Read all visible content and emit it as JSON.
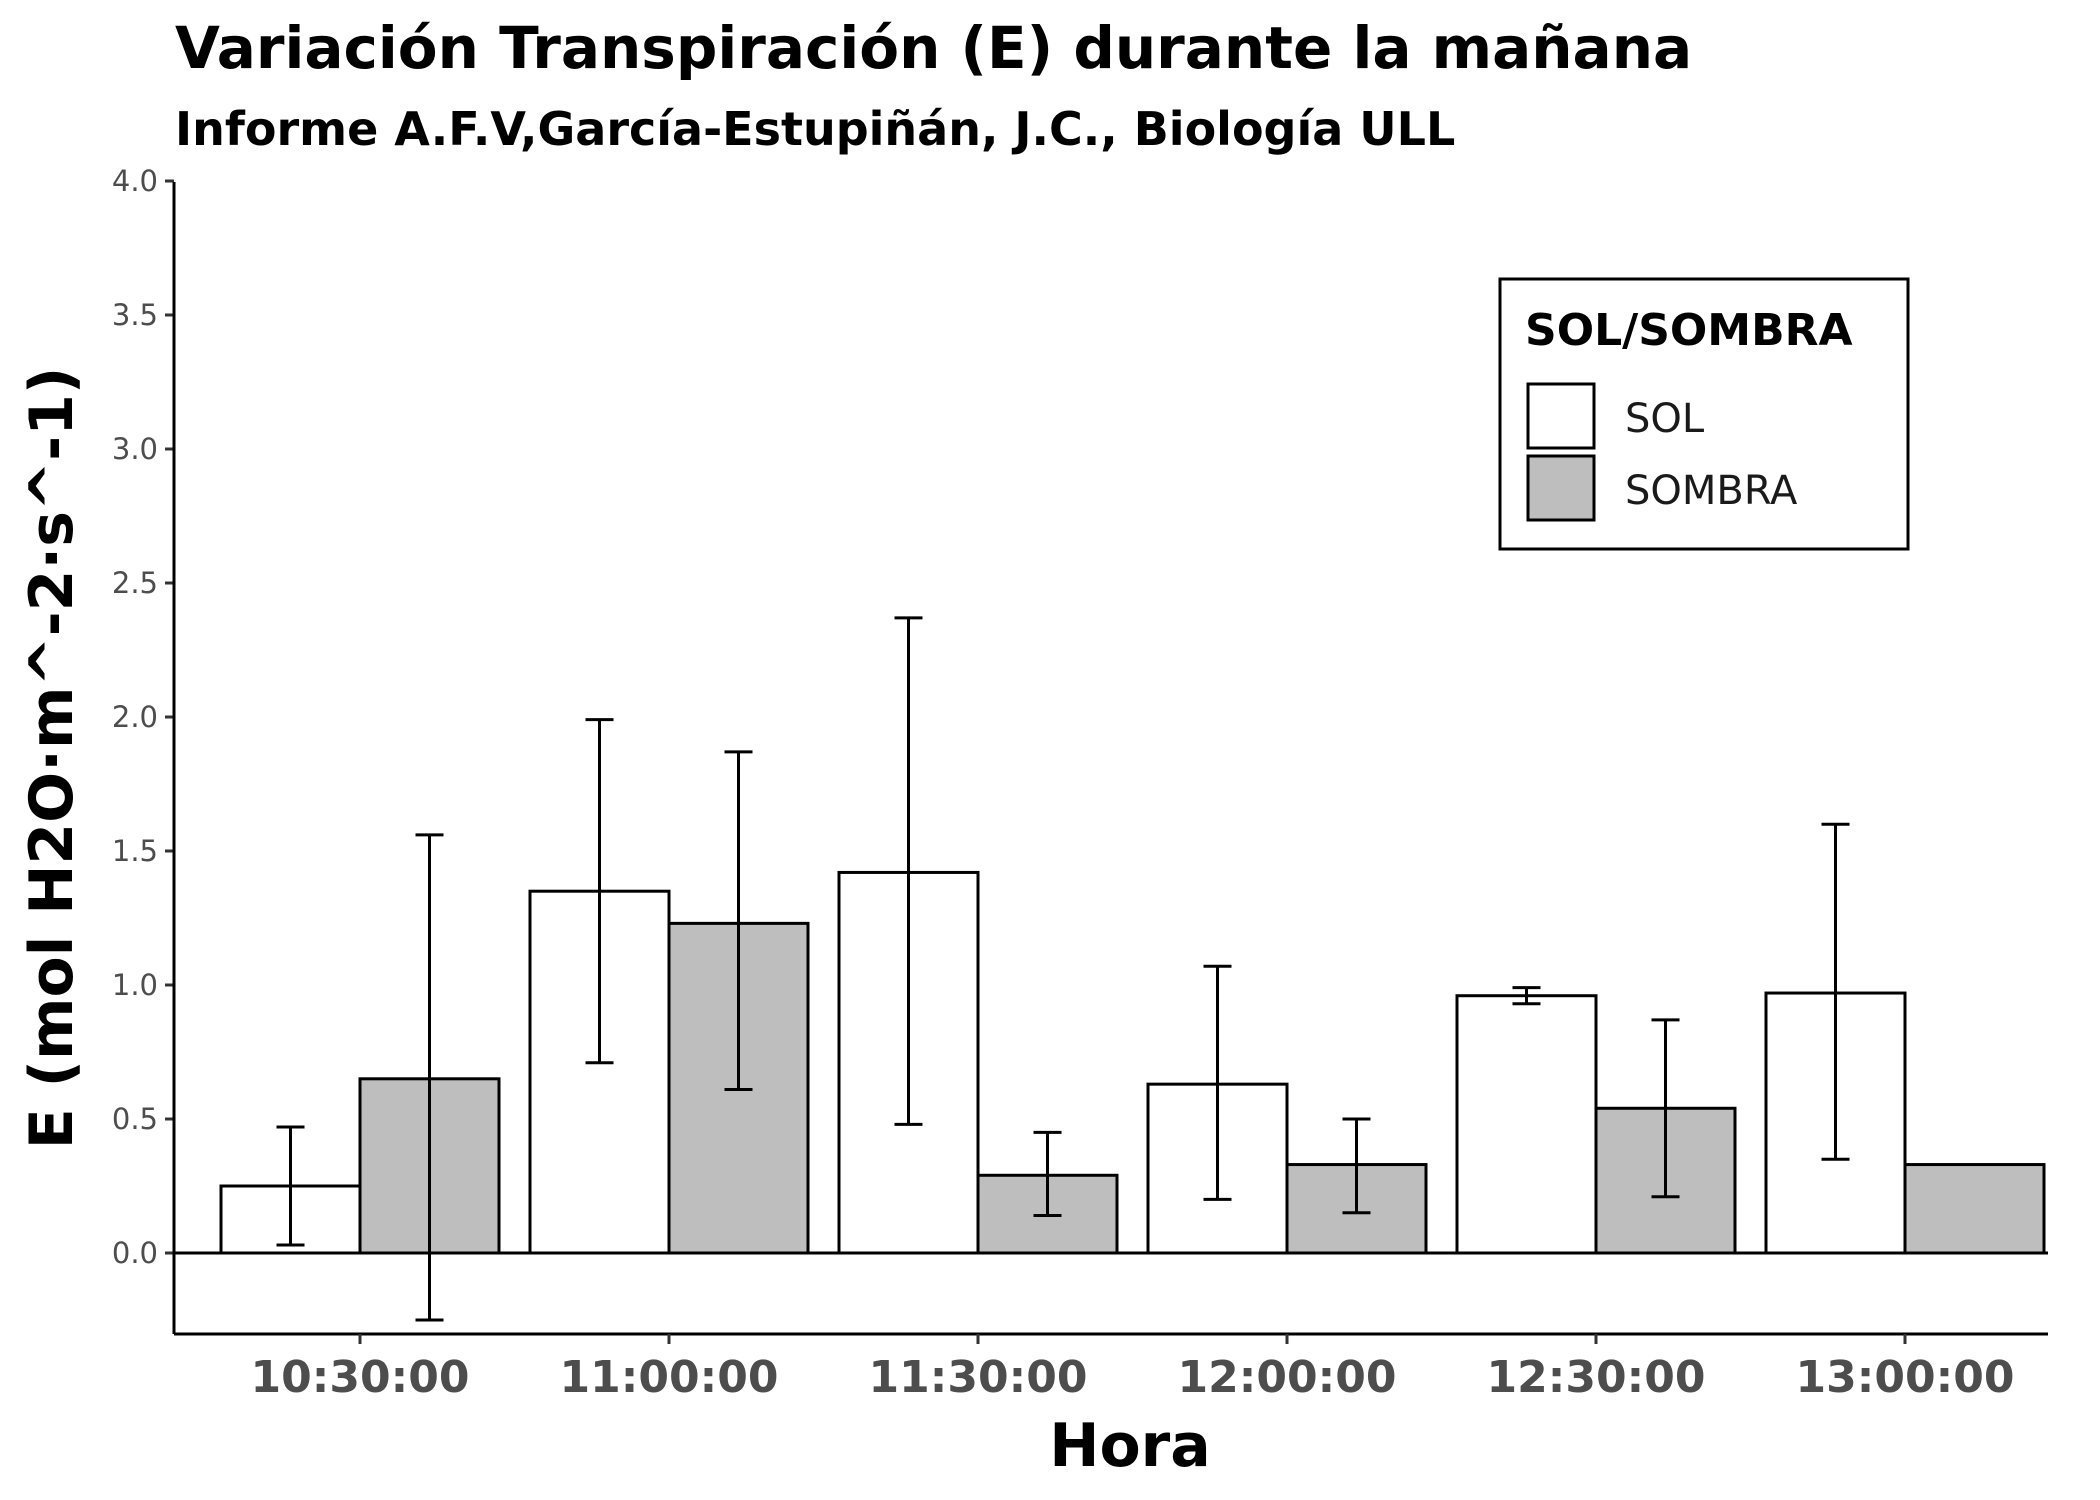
{
  "chart_data": {
    "type": "bar",
    "title": "Variación Transpiración (E) durante la mañana",
    "subtitle": "Informe A.F.V,García-Estupiñán, J.C., Biología ULL",
    "xlabel": "Hora",
    "ylabel": "E (mol H2O·m^-2·s^-1)",
    "ylim": [
      -0.3,
      4.0
    ],
    "yticks": [
      "0.0",
      "0.5",
      "1.0",
      "1.5",
      "2.0",
      "2.5",
      "3.0",
      "3.5",
      "4.0"
    ],
    "categories": [
      "10:30:00",
      "11:00:00",
      "11:30:00",
      "12:00:00",
      "12:30:00",
      "13:00:00"
    ],
    "legend": {
      "title": "SOL/SOMBRA",
      "position": "top-right"
    },
    "series": [
      {
        "name": "SOL",
        "color": "#ffffff",
        "values": [
          0.25,
          1.35,
          1.42,
          0.63,
          0.96,
          0.97
        ],
        "error_low": [
          0.03,
          0.71,
          0.48,
          0.2,
          0.93,
          0.35
        ],
        "error_high": [
          0.47,
          1.99,
          2.37,
          1.07,
          0.99,
          1.6
        ]
      },
      {
        "name": "SOMBRA",
        "color": "#bebebe",
        "values": [
          0.65,
          1.23,
          0.29,
          0.33,
          0.54,
          0.33
        ],
        "error_low": [
          -0.25,
          0.61,
          0.14,
          0.15,
          0.21,
          null
        ],
        "error_high": [
          1.56,
          1.87,
          0.45,
          0.5,
          0.87,
          null
        ]
      }
    ]
  }
}
